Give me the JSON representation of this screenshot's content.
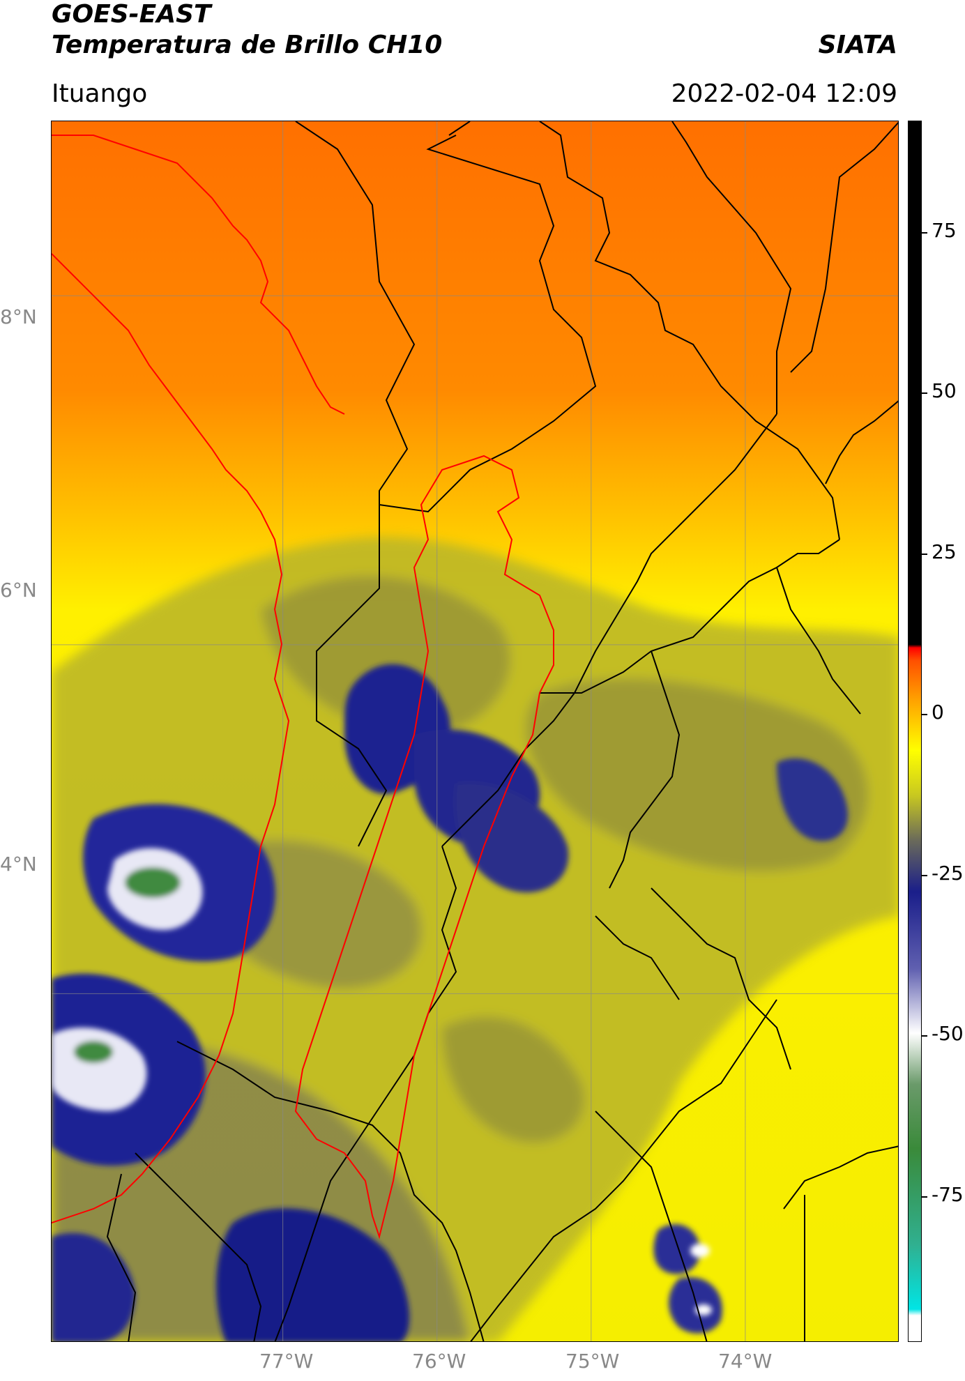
{
  "header": {
    "satellite": "GOES-EAST",
    "product": "Temperatura de Brillo CH10",
    "organization": "SIATA",
    "region": "Ituango",
    "datetime": "2022-02-04 12:09"
  },
  "map": {
    "lon_range": [
      -78.5,
      -73.0
    ],
    "lat_range": [
      2.0,
      9.0
    ],
    "lat_ticks": [
      {
        "value": 8,
        "label": "8°N"
      },
      {
        "value": 6,
        "label": "6°N"
      },
      {
        "value": 4,
        "label": "4°N"
      }
    ],
    "lon_ticks": [
      {
        "value": -77,
        "label": "77°W"
      },
      {
        "value": -76,
        "label": "76°W"
      },
      {
        "value": -75,
        "label": "75°W"
      },
      {
        "value": -74,
        "label": "74°W"
      }
    ],
    "gridlines": true,
    "colors": {
      "warm_north": "#ff7000",
      "mid": "#ffa500",
      "yellow": "#f7f000",
      "olive": "#9c9c2a",
      "cold_cloud": "#1a1e8a",
      "coldest_cloud": "#ffffff",
      "core": "#3a8a3a",
      "border_black": "#000000",
      "coast_red": "#ff0000"
    }
  },
  "colorbar": {
    "range": [
      -100,
      90
    ],
    "ticks": [
      {
        "value": 75,
        "label": "75"
      },
      {
        "value": 50,
        "label": "50"
      },
      {
        "value": 25,
        "label": "25"
      },
      {
        "value": 0,
        "label": "0"
      },
      {
        "value": -25,
        "label": "-25"
      },
      {
        "value": -50,
        "label": "-50"
      },
      {
        "value": -75,
        "label": "-75"
      }
    ],
    "stops": [
      {
        "value": -100,
        "color": "#ffffff"
      },
      {
        "value": -96,
        "color": "#ffffff"
      },
      {
        "value": -95,
        "color": "#00e5e5"
      },
      {
        "value": -85,
        "color": "#30b090"
      },
      {
        "value": -70,
        "color": "#3a8a3a"
      },
      {
        "value": -60,
        "color": "#6a9a6a"
      },
      {
        "value": -52,
        "color": "#ffffff"
      },
      {
        "value": -42,
        "color": "#6060b0"
      },
      {
        "value": -30,
        "color": "#1a1e8a"
      },
      {
        "value": -22,
        "color": "#6a6a5a"
      },
      {
        "value": -15,
        "color": "#c8c820"
      },
      {
        "value": -8,
        "color": "#ffff00"
      },
      {
        "value": 0,
        "color": "#ffa000"
      },
      {
        "value": 6,
        "color": "#ff5000"
      },
      {
        "value": 8,
        "color": "#ff0000"
      },
      {
        "value": 8.5,
        "color": "#000000"
      },
      {
        "value": 90,
        "color": "#000000"
      }
    ]
  }
}
